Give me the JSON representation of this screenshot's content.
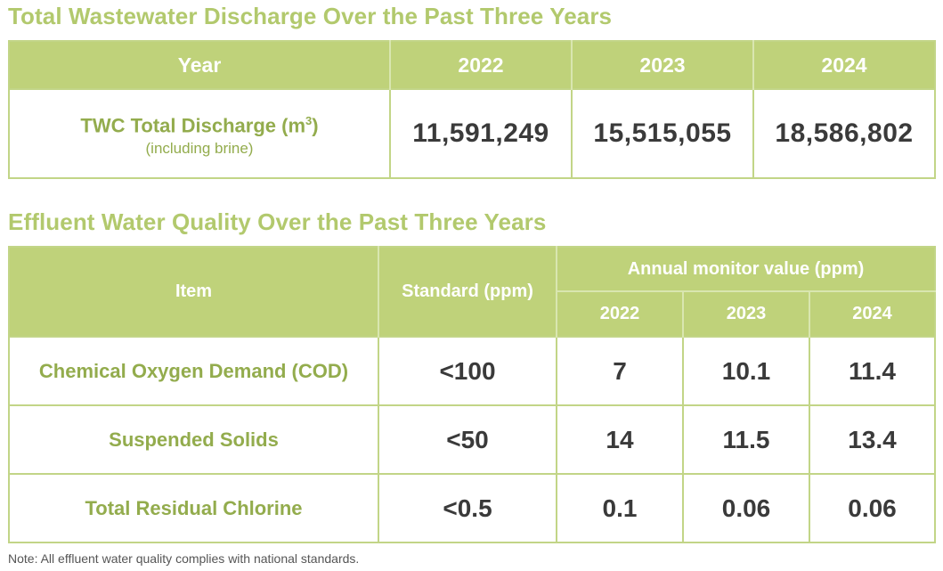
{
  "discharge": {
    "title": "Total Wastewater Discharge Over the Past Three Years",
    "header_label": "Year",
    "years": [
      "2022",
      "2023",
      "2024"
    ],
    "row": {
      "label": "TWC Total Discharge (m",
      "label_sup": "3",
      "label_close": ")",
      "sublabel": "(including brine)",
      "values": [
        "11,591,249",
        "15,515,055",
        "18,586,802"
      ]
    }
  },
  "quality": {
    "title": "Effluent Water Quality Over the Past Three Years",
    "headers": {
      "item": "Item",
      "standard": "Standard (ppm)",
      "annual": "Annual monitor value (ppm)",
      "years": [
        "2022",
        "2023",
        "2024"
      ]
    },
    "rows": [
      {
        "item": "Chemical Oxygen Demand (COD)",
        "standard": "<100",
        "values": [
          "7",
          "10.1",
          "11.4"
        ]
      },
      {
        "item": "Suspended Solids",
        "standard": "<50",
        "values": [
          "14",
          "11.5",
          "13.4"
        ]
      },
      {
        "item": "Total Residual Chlorine",
        "standard": "<0.5",
        "values": [
          "0.1",
          "0.06",
          "0.06"
        ]
      }
    ]
  },
  "note": "Note: All effluent water quality complies with national standards."
}
